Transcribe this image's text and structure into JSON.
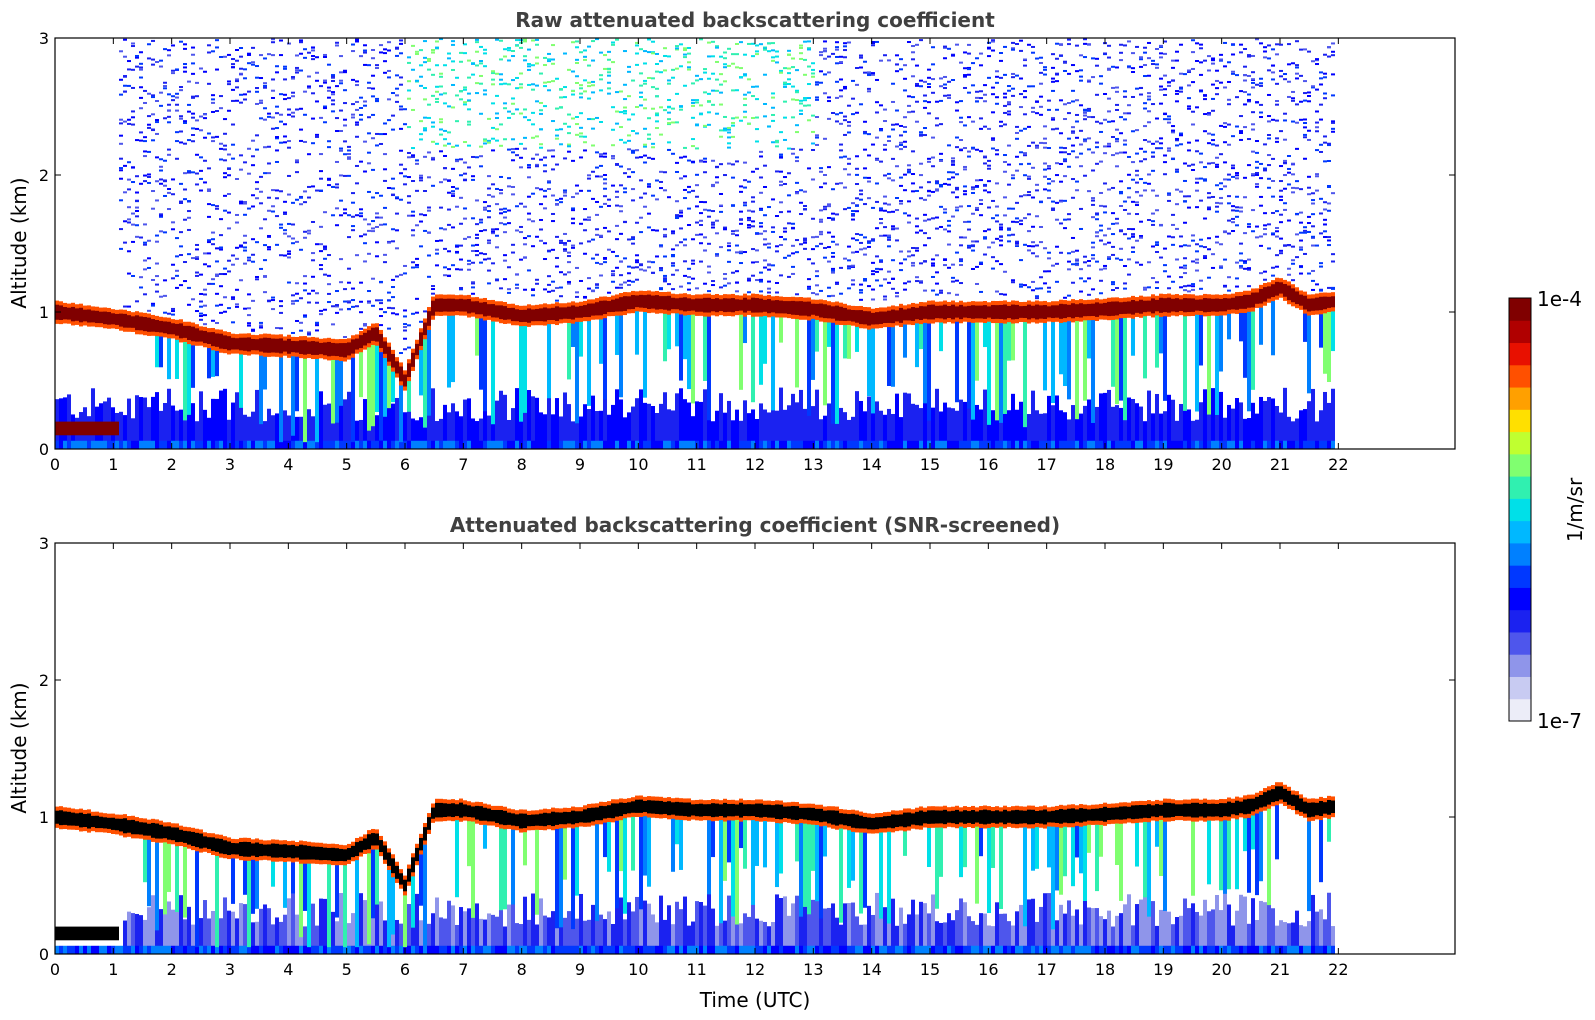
{
  "chart_data": [
    {
      "type": "heatmap",
      "title": "Raw attenuated backscattering coefficient",
      "xlabel": "",
      "ylabel": "Altitude (km)",
      "xlim": [
        0,
        24
      ],
      "ylim": [
        0,
        3
      ],
      "x_ticks": [
        "0",
        "1",
        "2",
        "3",
        "4",
        "5",
        "6",
        "7",
        "8",
        "9",
        "10",
        "11",
        "12",
        "13",
        "14",
        "15",
        "16",
        "17",
        "18",
        "19",
        "20",
        "21",
        "22"
      ],
      "y_ticks": [
        "0",
        "1",
        "2",
        "3"
      ],
      "data_end_hour": 22,
      "cloud_base_km": [
        {
          "t": 0.0,
          "z": 1.0
        },
        {
          "t": 1.0,
          "z": 0.95
        },
        {
          "t": 2.0,
          "z": 0.88
        },
        {
          "t": 3.0,
          "z": 0.77
        },
        {
          "t": 4.0,
          "z": 0.75
        },
        {
          "t": 5.0,
          "z": 0.72
        },
        {
          "t": 5.5,
          "z": 0.85
        },
        {
          "t": 6.0,
          "z": 0.5
        },
        {
          "t": 6.5,
          "z": 1.05
        },
        {
          "t": 7.0,
          "z": 1.05
        },
        {
          "t": 8.0,
          "z": 0.97
        },
        {
          "t": 9.0,
          "z": 1.0
        },
        {
          "t": 10.0,
          "z": 1.08
        },
        {
          "t": 11.0,
          "z": 1.05
        },
        {
          "t": 12.0,
          "z": 1.05
        },
        {
          "t": 13.0,
          "z": 1.02
        },
        {
          "t": 14.0,
          "z": 0.95
        },
        {
          "t": 15.0,
          "z": 1.0
        },
        {
          "t": 16.0,
          "z": 1.0
        },
        {
          "t": 17.0,
          "z": 1.0
        },
        {
          "t": 18.0,
          "z": 1.02
        },
        {
          "t": 19.0,
          "z": 1.05
        },
        {
          "t": 20.0,
          "z": 1.05
        },
        {
          "t": 20.5,
          "z": 1.08
        },
        {
          "t": 21.0,
          "z": 1.18
        },
        {
          "t": 21.5,
          "z": 1.05
        },
        {
          "t": 22.0,
          "z": 1.08
        }
      ],
      "noise_above_cloud": true
    },
    {
      "type": "heatmap",
      "title": "Attenuated backscattering coefficient (SNR-screened)",
      "xlabel": "Time (UTC)",
      "ylabel": "Altitude (km)",
      "xlim": [
        0,
        24
      ],
      "ylim": [
        0,
        3
      ],
      "x_ticks": [
        "0",
        "1",
        "2",
        "3",
        "4",
        "5",
        "6",
        "7",
        "8",
        "9",
        "10",
        "11",
        "12",
        "13",
        "14",
        "15",
        "16",
        "17",
        "18",
        "19",
        "20",
        "21",
        "22"
      ],
      "y_ticks": [
        "0",
        "1",
        "2",
        "3"
      ],
      "data_end_hour": 22,
      "noise_above_cloud": false
    }
  ],
  "colorbar": {
    "label": "1/m/sr",
    "max_label": "1e-4",
    "min_label": "1e-7",
    "colors": [
      "#ecedf8",
      "#c8cbf2",
      "#8f95ea",
      "#4e56ec",
      "#1b22f0",
      "#0000ff",
      "#0038ff",
      "#0080ff",
      "#00b8ff",
      "#00e0e8",
      "#30f0b0",
      "#80ff70",
      "#c0ff30",
      "#ffe000",
      "#ffa000",
      "#ff5000",
      "#e81000",
      "#b00000",
      "#800000"
    ]
  }
}
